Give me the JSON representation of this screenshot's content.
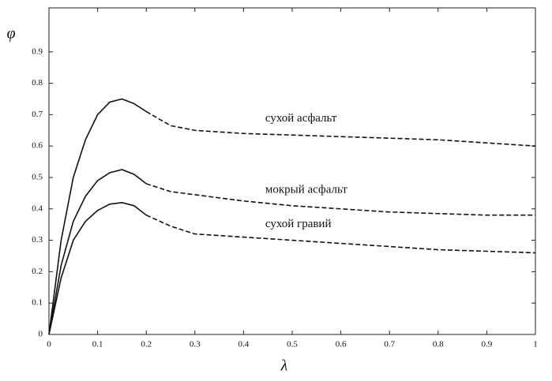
{
  "chart_data": {
    "type": "line",
    "x_label": "λ",
    "y_label": "φ",
    "x": [
      0,
      0.025,
      0.05,
      0.075,
      0.1,
      0.125,
      0.15,
      0.175,
      0.2,
      0.25,
      0.3,
      0.4,
      0.5,
      0.6,
      0.7,
      0.8,
      0.9,
      1
    ],
    "series": [
      {
        "name": "сухой асфальт",
        "color": "#111111",
        "values": [
          0,
          0.3,
          0.5,
          0.62,
          0.7,
          0.74,
          0.75,
          0.735,
          0.71,
          0.665,
          0.65,
          0.64,
          0.635,
          0.63,
          0.625,
          0.62,
          0.61,
          0.6
        ]
      },
      {
        "name": "мокрый асфальт",
        "color": "#111111",
        "values": [
          0,
          0.22,
          0.36,
          0.44,
          0.49,
          0.515,
          0.525,
          0.51,
          0.48,
          0.455,
          0.445,
          0.425,
          0.41,
          0.4,
          0.39,
          0.385,
          0.38,
          0.38
        ]
      },
      {
        "name": "сухой гравий",
        "color": "#111111",
        "values": [
          0,
          0.18,
          0.3,
          0.36,
          0.395,
          0.415,
          0.42,
          0.41,
          0.38,
          0.345,
          0.32,
          0.31,
          0.3,
          0.29,
          0.28,
          0.27,
          0.265,
          0.26
        ]
      }
    ],
    "dashed_after": 0.2,
    "xlim": [
      0,
      1
    ],
    "ylim": [
      0,
      1.04
    ],
    "xticks": [
      0,
      0.1,
      0.2,
      0.3,
      0.4,
      0.5,
      0.6,
      0.7,
      0.8,
      0.9,
      1
    ],
    "yticks": [
      0,
      0.1,
      0.2,
      0.3,
      0.4,
      0.5,
      0.6,
      0.7,
      0.8,
      0.9
    ],
    "grid": false
  }
}
